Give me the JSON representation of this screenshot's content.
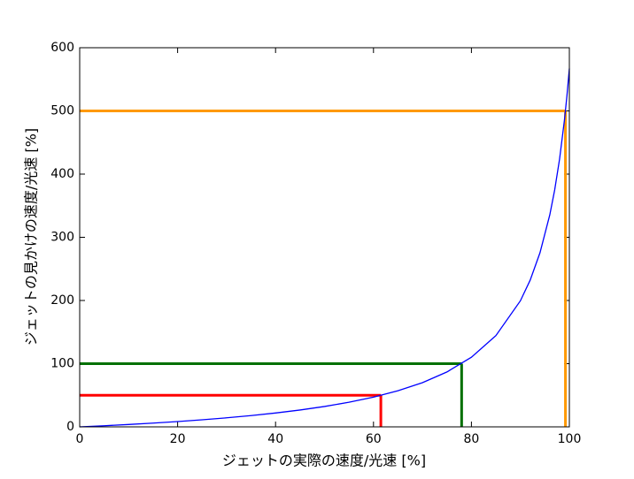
{
  "chart_data": {
    "type": "line",
    "x_label": "ジェットの実際の速度/光速 [%]",
    "y_label": "ジェットの見かけの速度/光速 [%]",
    "xlim": [
      0,
      100
    ],
    "ylim": [
      0,
      600
    ],
    "xticks": [
      0,
      20,
      40,
      60,
      80,
      100
    ],
    "yticks": [
      0,
      100,
      200,
      300,
      400,
      500,
      600
    ],
    "series": [
      {
        "color": "#0000ff",
        "x": [
          0,
          5,
          10,
          15,
          20,
          25,
          30,
          35,
          40,
          45,
          50,
          55,
          60,
          65,
          70,
          75,
          80,
          85,
          90,
          92,
          94,
          96,
          97,
          98,
          99,
          99.5,
          100
        ],
        "values": [
          0,
          1.79,
          3.77,
          5.97,
          8.42,
          11.18,
          14.29,
          17.84,
          21.92,
          26.67,
          32.26,
          38.93,
          47.05,
          57.12,
          69.96,
          86.89,
          110.22,
          144.45,
          199.52,
          232.25,
          275.51,
          335.39,
          374.87,
          423.72,
          485.75,
          523.48,
          567.1
        ]
      }
    ],
    "guides": [
      {
        "color": "#ff0000",
        "x": 61.5,
        "y": 50
      },
      {
        "color": "#007000",
        "x": 78,
        "y": 100
      },
      {
        "color": "#ff9900",
        "x": 99.2,
        "y": 500
      }
    ]
  }
}
